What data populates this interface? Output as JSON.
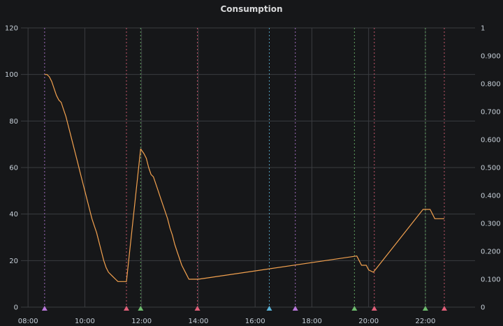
{
  "panel": {
    "title": "Consumption"
  },
  "chart_data": {
    "type": "line",
    "title": "Consumption",
    "xlabel": "",
    "ylabel": "",
    "grid": true,
    "x_axis": {
      "type": "time",
      "range": [
        "07:45",
        "23:45"
      ],
      "ticks": [
        "08:00",
        "10:00",
        "12:00",
        "14:00",
        "16:00",
        "18:00",
        "20:00",
        "22:00"
      ]
    },
    "y_left": {
      "range": [
        0,
        120
      ],
      "ticks": [
        "0",
        "20",
        "40",
        "60",
        "80",
        "100",
        "120"
      ]
    },
    "y_right": {
      "range": [
        0,
        1
      ],
      "ticks": [
        "0",
        "0.100",
        "0.200",
        "0.300",
        "0.400",
        "0.500",
        "0.600",
        "0.700",
        "0.800",
        "0.900",
        "1"
      ]
    },
    "series": [
      {
        "color": "#f2a14f",
        "axis": "left",
        "step": true,
        "points": [
          [
            "08:35",
            100
          ],
          [
            "08:40",
            100
          ],
          [
            "08:45",
            99
          ],
          [
            "08:50",
            97
          ],
          [
            "08:55",
            94
          ],
          [
            "09:00",
            91
          ],
          [
            "09:05",
            89
          ],
          [
            "09:10",
            88
          ],
          [
            "09:15",
            85
          ],
          [
            "09:20",
            82
          ],
          [
            "09:25",
            78
          ],
          [
            "09:30",
            74
          ],
          [
            "09:35",
            70
          ],
          [
            "09:40",
            66
          ],
          [
            "09:45",
            62
          ],
          [
            "09:50",
            58
          ],
          [
            "09:55",
            54
          ],
          [
            "10:00",
            50
          ],
          [
            "10:05",
            46
          ],
          [
            "10:10",
            42
          ],
          [
            "10:15",
            38
          ],
          [
            "10:20",
            35
          ],
          [
            "10:25",
            32
          ],
          [
            "10:30",
            28
          ],
          [
            "10:35",
            24
          ],
          [
            "10:40",
            20
          ],
          [
            "10:45",
            17
          ],
          [
            "10:50",
            15
          ],
          [
            "10:55",
            14
          ],
          [
            "11:00",
            13
          ],
          [
            "11:05",
            12
          ],
          [
            "11:10",
            11
          ],
          [
            "11:28",
            11
          ],
          [
            "11:58",
            68
          ],
          [
            "12:05",
            66
          ],
          [
            "12:10",
            64
          ],
          [
            "12:15",
            60
          ],
          [
            "12:20",
            57
          ],
          [
            "12:25",
            56
          ],
          [
            "12:30",
            53
          ],
          [
            "12:35",
            50
          ],
          [
            "12:40",
            47
          ],
          [
            "12:45",
            44
          ],
          [
            "12:50",
            41
          ],
          [
            "12:55",
            38
          ],
          [
            "13:00",
            34
          ],
          [
            "13:05",
            31
          ],
          [
            "13:10",
            27
          ],
          [
            "13:15",
            24
          ],
          [
            "13:20",
            21
          ],
          [
            "13:25",
            18
          ],
          [
            "13:30",
            16
          ],
          [
            "13:35",
            14
          ],
          [
            "13:40",
            12
          ],
          [
            "14:00",
            12
          ],
          [
            "19:35",
            22
          ],
          [
            "19:40",
            20
          ],
          [
            "19:45",
            18
          ],
          [
            "19:55",
            18
          ],
          [
            "20:00",
            16
          ],
          [
            "20:10",
            15
          ],
          [
            "21:55",
            42
          ],
          [
            "22:10",
            42
          ],
          [
            "22:20",
            38
          ],
          [
            "22:40",
            38
          ]
        ]
      }
    ],
    "annotations": [
      {
        "time": "08:35",
        "color": "#b877d9"
      },
      {
        "time": "11:28",
        "color": "#e05f79"
      },
      {
        "time": "11:58",
        "color": "#6dbb6d"
      },
      {
        "time": "13:58",
        "color": "#e05f79"
      },
      {
        "time": "16:30",
        "color": "#5ab4d9"
      },
      {
        "time": "17:25",
        "color": "#b877d9"
      },
      {
        "time": "19:30",
        "color": "#6dbb6d"
      },
      {
        "time": "20:12",
        "color": "#e05f79"
      },
      {
        "time": "22:00",
        "color": "#6dbb6d"
      },
      {
        "time": "22:40",
        "color": "#e05f79"
      }
    ],
    "colors": {
      "background": "#161719",
      "grid": "#3a3c40",
      "axis_text": "#c7d0d9"
    }
  }
}
